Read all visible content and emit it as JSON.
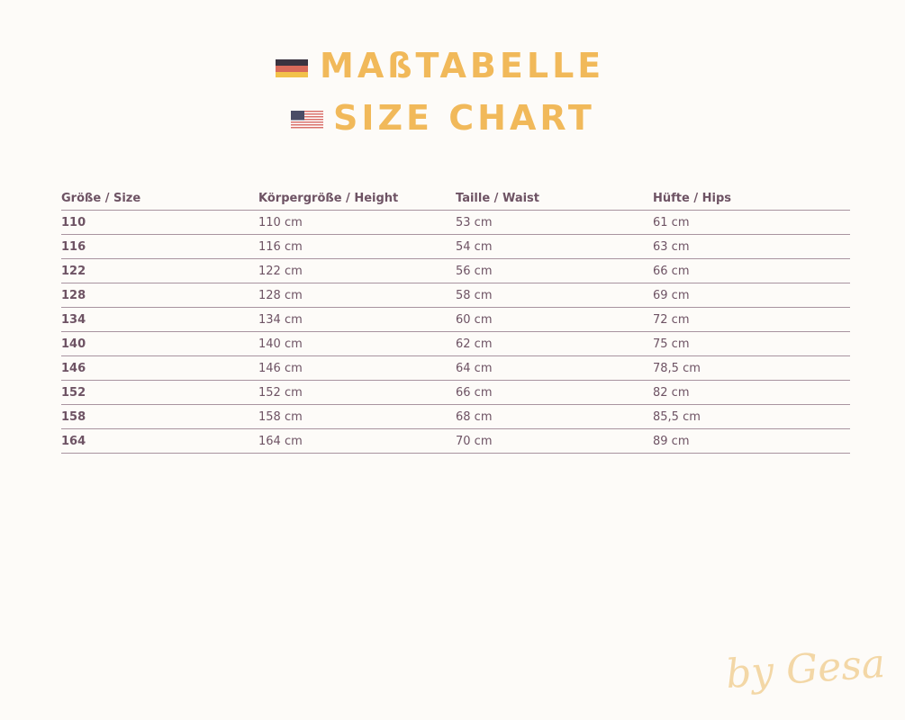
{
  "title": {
    "german": "MAßTABELLE",
    "english": "SIZE CHART",
    "color": "#f1b95a"
  },
  "flags": {
    "german": "germany-flag-icon",
    "english": "usa-flag-icon"
  },
  "table": {
    "headers": [
      "Größe / Size",
      "Körpergröße / Height",
      "Taille / Waist",
      "Hüfte / Hips"
    ],
    "rows": [
      [
        "110",
        "110 cm",
        "53 cm",
        "61 cm"
      ],
      [
        "116",
        "116 cm",
        "54 cm",
        "63 cm"
      ],
      [
        "122",
        "122 cm",
        "56 cm",
        "66 cm"
      ],
      [
        "128",
        "128 cm",
        "58 cm",
        "69 cm"
      ],
      [
        "134",
        "134 cm",
        "60 cm",
        "72 cm"
      ],
      [
        "140",
        "140 cm",
        "62 cm",
        "75 cm"
      ],
      [
        "146",
        "146 cm",
        "64 cm",
        "78,5 cm"
      ],
      [
        "152",
        "152 cm",
        "66 cm",
        "82 cm"
      ],
      [
        "158",
        "158 cm",
        "68 cm",
        "85,5 cm"
      ],
      [
        "164",
        "164 cm",
        "70 cm",
        "89 cm"
      ]
    ]
  },
  "signature": "by Gesa"
}
